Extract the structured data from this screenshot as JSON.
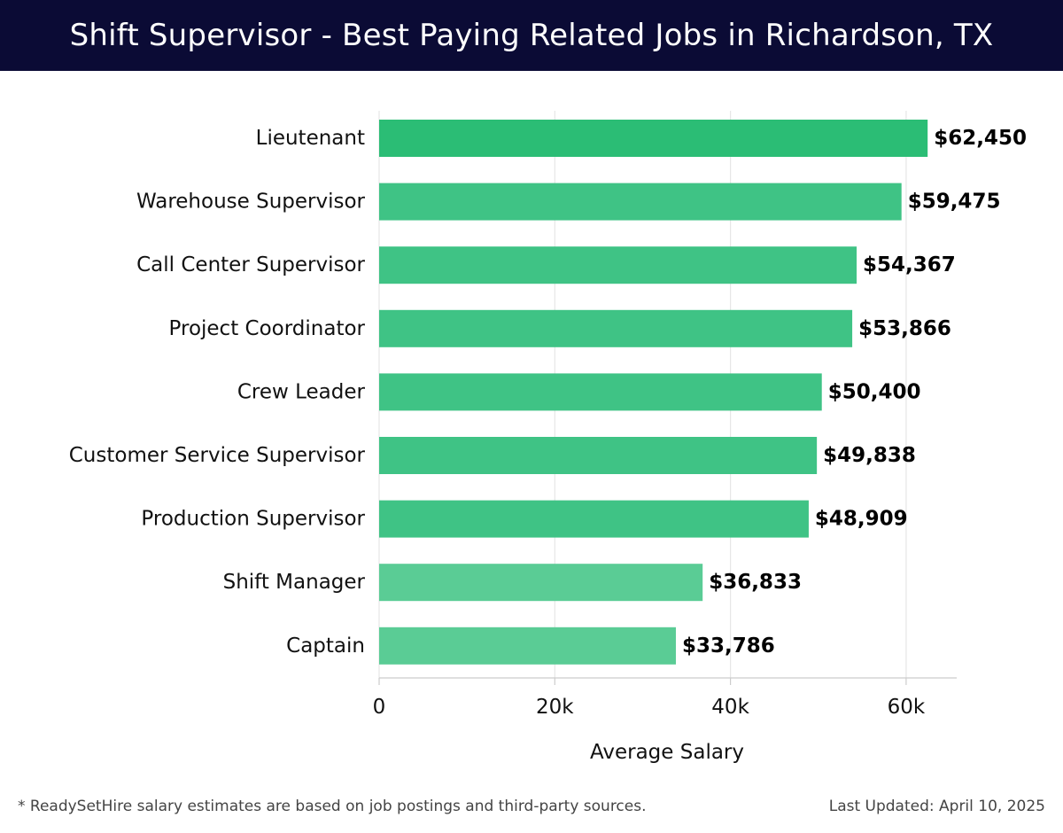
{
  "header": {
    "title": "Shift Supervisor - Best Paying Related Jobs in Richardson, TX"
  },
  "chart_data": {
    "type": "bar",
    "orientation": "horizontal",
    "title": "Shift Supervisor - Best Paying Related Jobs in Richardson, TX",
    "xlabel": "Average Salary",
    "ylabel": "",
    "xlim": [
      0,
      66000
    ],
    "xticks": [
      0,
      20000,
      40000,
      60000
    ],
    "xtick_labels": [
      "0",
      "20k",
      "40k",
      "60k"
    ],
    "grid": "vertical",
    "categories": [
      "Lieutenant",
      "Warehouse Supervisor",
      "Call Center Supervisor",
      "Project Coordinator",
      "Crew Leader",
      "Customer Service Supervisor",
      "Production Supervisor",
      "Shift Manager",
      "Captain"
    ],
    "values": [
      62450,
      59475,
      54367,
      53866,
      50400,
      49838,
      48909,
      36833,
      33786
    ],
    "value_labels": [
      "$62,450",
      "$59,475",
      "$54,367",
      "$53,866",
      "$50,400",
      "$49,838",
      "$48,909",
      "$36,833",
      "$33,786"
    ],
    "colors": {
      "bar_high": "#2bbd75",
      "bar_mid": "#3fc385",
      "bar_low": "#5acc95",
      "grid": "#e6e6e6",
      "axis": "#cccccc",
      "header_bg": "#0b0b35"
    }
  },
  "footer": {
    "note": "* ReadySetHire salary estimates are based on job postings and third-party sources.",
    "updated": "Last Updated: April 10, 2025"
  }
}
